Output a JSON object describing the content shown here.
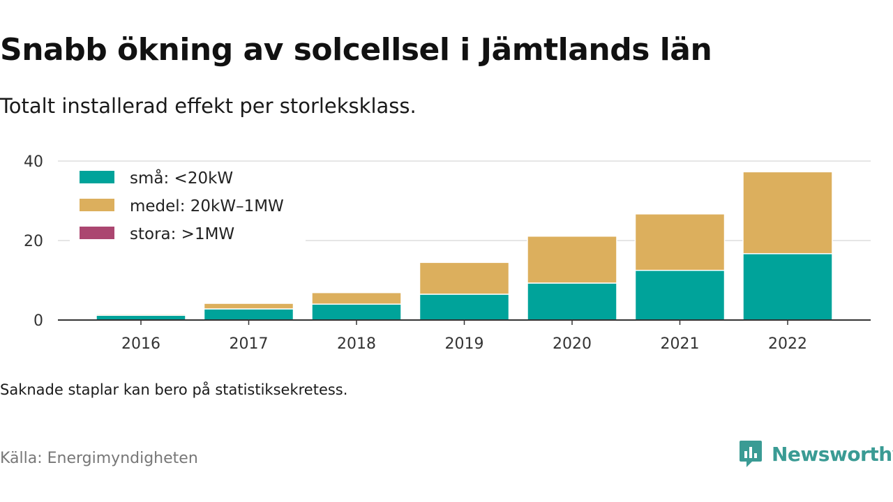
{
  "header": {
    "title": "Snabb ökning av solcellsel i Jämtlands län",
    "subtitle": "Totalt installerad effekt per storleksklass."
  },
  "footer": {
    "note": "Saknade staplar kan bero på statistiksekretess.",
    "source": "Källa: Energimyndigheten",
    "brand": "Newsworthy"
  },
  "colors": {
    "sma": "#00a39a",
    "medel": "#dcaf5d",
    "stora": "#ab4670",
    "grid": "#dddddd",
    "axis": "#333333",
    "brand": "#3a9b94"
  },
  "chart_data": {
    "type": "bar",
    "stacked": true,
    "categories": [
      "2016",
      "2017",
      "2018",
      "2019",
      "2020",
      "2021",
      "2022"
    ],
    "series": [
      {
        "name": "små: <20kW",
        "color": "#00a39a",
        "values": [
          1.2,
          2.8,
          4.0,
          6.5,
          9.3,
          12.5,
          16.7
        ]
      },
      {
        "name": "medel: 20kW–1MW",
        "color": "#dcaf5d",
        "values": [
          0.3,
          1.4,
          2.9,
          8.0,
          11.8,
          14.2,
          20.6
        ]
      },
      {
        "name": "stora: >1MW",
        "color": "#ab4670",
        "values": [
          0,
          0,
          0,
          0,
          0,
          0,
          0
        ]
      }
    ],
    "yticks": [
      0,
      20,
      40
    ],
    "ylim": [
      0,
      40
    ],
    "grid": true,
    "legend_position": "top-left"
  }
}
